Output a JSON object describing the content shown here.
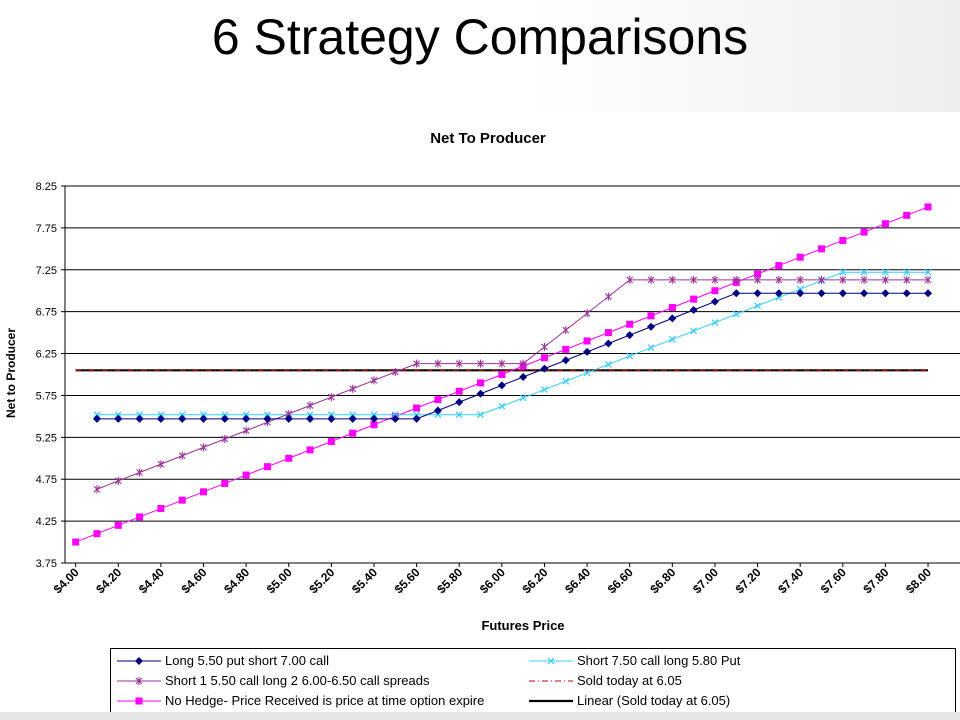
{
  "slide_title": "6 Strategy Comparisons",
  "chart_data": {
    "type": "line",
    "title": "Net To Producer",
    "xlabel": "Futures Price",
    "ylabel": "Net to Producer",
    "ylim": [
      3.75,
      8.25
    ],
    "yticks": [
      "3.75",
      "4.25",
      "4.75",
      "5.25",
      "5.75",
      "6.25",
      "6.75",
      "7.25",
      "7.75",
      "8.25"
    ],
    "xticks": [
      "$4.00",
      "$4.20",
      "$4.40",
      "$4.60",
      "$4.80",
      "$5.00",
      "$5.20",
      "$5.40",
      "$5.60",
      "$5.80",
      "$6.00",
      "$6.20",
      "$6.40",
      "$6.60",
      "$6.80",
      "$7.00",
      "$7.20",
      "$7.40",
      "$7.60",
      "$7.80",
      "$8.00"
    ],
    "grid": "horizontal",
    "legend_position": "bottom",
    "colors": {
      "long_put": "#000080",
      "short_call_long_put": "#33ccff",
      "spread": "#993399",
      "sold_today": "#cc0000",
      "no_hedge": "#ff00ff",
      "linear": "#000000"
    },
    "series": [
      {
        "name": "Long 5.50 put short 7.00 call",
        "color": "#000080",
        "marker": "diamond",
        "x": [
          4.1,
          4.2,
          4.3,
          4.4,
          4.5,
          4.6,
          4.7,
          4.8,
          4.9,
          5.0,
          5.1,
          5.2,
          5.3,
          5.4,
          5.5,
          5.6,
          5.7,
          5.8,
          5.9,
          6.0,
          6.1,
          6.2,
          6.3,
          6.4,
          6.5,
          6.6,
          6.7,
          6.8,
          6.9,
          7.0,
          7.1,
          7.2,
          7.3,
          7.4,
          7.5,
          7.6,
          7.7,
          7.8,
          7.9,
          8.0
        ],
        "y": [
          5.47,
          5.47,
          5.47,
          5.47,
          5.47,
          5.47,
          5.47,
          5.47,
          5.47,
          5.47,
          5.47,
          5.47,
          5.47,
          5.47,
          5.47,
          5.47,
          5.57,
          5.67,
          5.77,
          5.87,
          5.97,
          6.07,
          6.17,
          6.27,
          6.37,
          6.47,
          6.57,
          6.67,
          6.77,
          6.87,
          6.97,
          6.97,
          6.97,
          6.97,
          6.97,
          6.97,
          6.97,
          6.97,
          6.97,
          6.97
        ]
      },
      {
        "name": "Short 7.50 call long 5.80 Put",
        "color": "#33ccff",
        "marker": "x",
        "x": [
          4.1,
          4.2,
          4.3,
          4.4,
          4.5,
          4.6,
          4.7,
          4.8,
          4.9,
          5.0,
          5.1,
          5.2,
          5.3,
          5.4,
          5.5,
          5.6,
          5.7,
          5.8,
          5.9,
          6.0,
          6.1,
          6.2,
          6.3,
          6.4,
          6.5,
          6.6,
          6.7,
          6.8,
          6.9,
          7.0,
          7.1,
          7.2,
          7.3,
          7.4,
          7.5,
          7.6,
          7.7,
          7.8,
          7.9,
          8.0
        ],
        "y": [
          5.52,
          5.52,
          5.52,
          5.52,
          5.52,
          5.52,
          5.52,
          5.52,
          5.52,
          5.52,
          5.52,
          5.52,
          5.52,
          5.52,
          5.52,
          5.52,
          5.52,
          5.52,
          5.52,
          5.62,
          5.72,
          5.82,
          5.92,
          6.02,
          6.12,
          6.22,
          6.32,
          6.42,
          6.52,
          6.62,
          6.72,
          6.82,
          6.92,
          7.02,
          7.12,
          7.22,
          7.22,
          7.22,
          7.22,
          7.22
        ]
      },
      {
        "name": "Short 1 5.50 call long 2 6.00-6.50 call spreads",
        "color": "#993399",
        "marker": "star",
        "x": [
          4.1,
          4.2,
          4.3,
          4.4,
          4.5,
          4.6,
          4.7,
          4.8,
          4.9,
          5.0,
          5.1,
          5.2,
          5.3,
          5.4,
          5.5,
          5.6,
          5.7,
          5.8,
          5.9,
          6.0,
          6.1,
          6.2,
          6.3,
          6.4,
          6.5,
          6.6,
          6.7,
          6.8,
          6.9,
          7.0,
          7.1,
          7.2,
          7.3,
          7.4,
          7.5,
          7.6,
          7.7,
          7.8,
          7.9,
          8.0
        ],
        "y": [
          4.63,
          4.73,
          4.83,
          4.93,
          5.03,
          5.13,
          5.23,
          5.33,
          5.43,
          5.53,
          5.63,
          5.73,
          5.83,
          5.93,
          6.03,
          6.13,
          6.13,
          6.13,
          6.13,
          6.13,
          6.13,
          6.33,
          6.53,
          6.73,
          6.93,
          7.13,
          7.13,
          7.13,
          7.13,
          7.13,
          7.13,
          7.13,
          7.13,
          7.13,
          7.13,
          7.13,
          7.13,
          7.13,
          7.13,
          7.13
        ]
      },
      {
        "name": "Sold today at 6.05",
        "color": "#cc0000",
        "marker": "none",
        "dash": true,
        "x": [
          4.0,
          8.0
        ],
        "y": [
          6.05,
          6.05
        ]
      },
      {
        "name": "No Hedge- Price Received is price at time option expire",
        "color": "#ff00ff",
        "marker": "square",
        "x": [
          4.0,
          4.1,
          4.2,
          4.3,
          4.4,
          4.5,
          4.6,
          4.7,
          4.8,
          4.9,
          5.0,
          5.1,
          5.2,
          5.3,
          5.4,
          5.5,
          5.6,
          5.7,
          5.8,
          5.9,
          6.0,
          6.1,
          6.2,
          6.3,
          6.4,
          6.5,
          6.6,
          6.7,
          6.8,
          6.9,
          7.0,
          7.1,
          7.2,
          7.3,
          7.4,
          7.5,
          7.6,
          7.7,
          7.8,
          7.9,
          8.0
        ],
        "y": [
          4.0,
          4.1,
          4.2,
          4.3,
          4.4,
          4.5,
          4.6,
          4.7,
          4.8,
          4.9,
          5.0,
          5.1,
          5.2,
          5.3,
          5.4,
          5.5,
          5.6,
          5.7,
          5.8,
          5.9,
          6.0,
          6.1,
          6.2,
          6.3,
          6.4,
          6.5,
          6.6,
          6.7,
          6.8,
          6.9,
          7.0,
          7.1,
          7.2,
          7.3,
          7.4,
          7.5,
          7.6,
          7.7,
          7.8,
          7.9,
          8.0
        ]
      },
      {
        "name": "Linear (Sold today at 6.05)",
        "color": "#000000",
        "marker": "none",
        "thick": true,
        "x": [
          4.0,
          8.0
        ],
        "y": [
          6.05,
          6.05
        ]
      }
    ]
  }
}
